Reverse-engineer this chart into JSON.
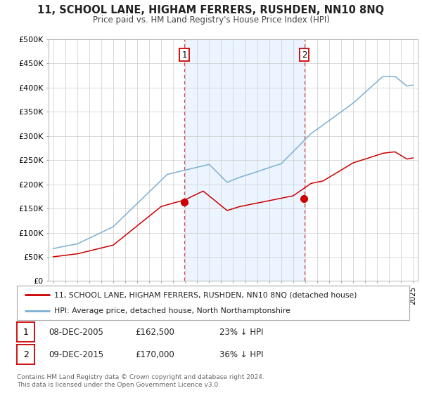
{
  "title": "11, SCHOOL LANE, HIGHAM FERRERS, RUSHDEN, NN10 8NQ",
  "subtitle": "Price paid vs. HM Land Registry's House Price Index (HPI)",
  "ylabel_ticks": [
    "£0",
    "£50K",
    "£100K",
    "£150K",
    "£200K",
    "£250K",
    "£300K",
    "£350K",
    "£400K",
    "£450K",
    "£500K"
  ],
  "ytick_vals": [
    0,
    50000,
    100000,
    150000,
    200000,
    250000,
    300000,
    350000,
    400000,
    450000,
    500000
  ],
  "xlim_years": [
    1994.6,
    2025.4
  ],
  "ylim": [
    0,
    500000
  ],
  "sale1_year": 2005.93,
  "sale1_price": 162500,
  "sale2_year": 2015.93,
  "sale2_price": 170000,
  "legend_house": "11, SCHOOL LANE, HIGHAM FERRERS, RUSHDEN, NN10 8NQ (detached house)",
  "legend_hpi": "HPI: Average price, detached house, North Northamptonshire",
  "table_row1": [
    "1",
    "08-DEC-2005",
    "£162,500",
    "23% ↓ HPI"
  ],
  "table_row2": [
    "2",
    "09-DEC-2015",
    "£170,000",
    "36% ↓ HPI"
  ],
  "footer": "Contains HM Land Registry data © Crown copyright and database right 2024.\nThis data is licensed under the Open Government Licence v3.0.",
  "house_color": "#cc0000",
  "hpi_color": "#7bafd4",
  "fill_color": "#ddeeff",
  "sale_marker_color": "#cc0000",
  "vline_color": "#cc0000",
  "background_color": "#ffffff",
  "plot_bg_color": "#ffffff",
  "grid_color": "#cccccc"
}
